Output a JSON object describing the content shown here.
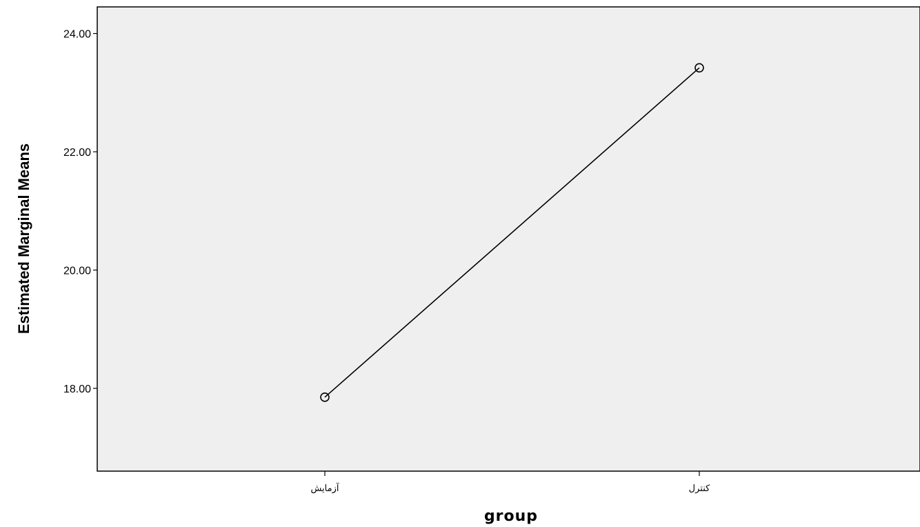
{
  "chart_data": {
    "type": "line",
    "title": "",
    "xlabel": "group",
    "ylabel": "Estimated Marginal Means",
    "categories": [
      "آزمایش",
      "کنترل"
    ],
    "series": [
      {
        "values": [
          17.85,
          23.42
        ]
      }
    ],
    "ylim": [
      16.6,
      24.45
    ],
    "yticks": [
      "18.00",
      "20.00",
      "22.00",
      "24.00"
    ],
    "yticks_values": [
      18,
      20,
      22,
      24
    ],
    "grid": false,
    "marker": "open-circle",
    "colors": {
      "plot_background": "#efefef",
      "line": "#000000",
      "frame": "#000000"
    }
  }
}
